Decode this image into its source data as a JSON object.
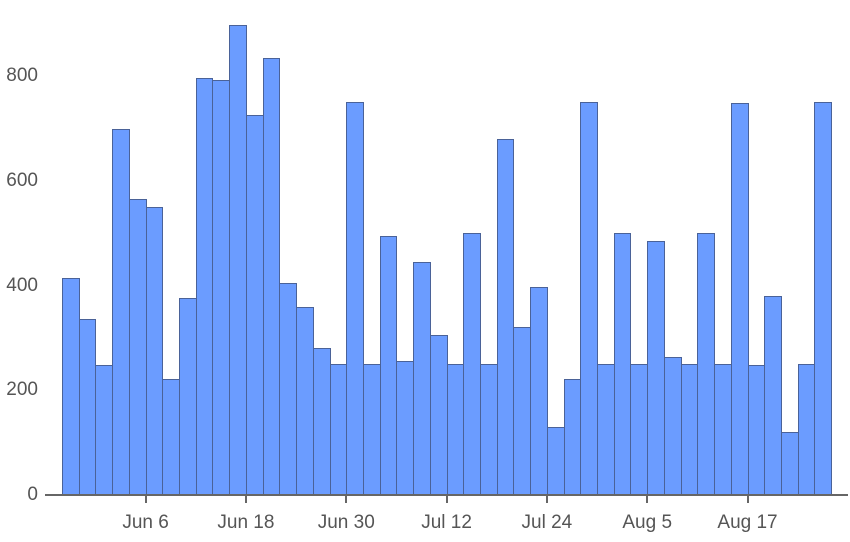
{
  "chart_data": {
    "type": "bar",
    "title": "",
    "xlabel": "",
    "ylabel": "",
    "ylim": [
      0,
      900
    ],
    "grid": false,
    "legend": null,
    "yticks": [
      0,
      200,
      400,
      600,
      800
    ],
    "xticks": [
      {
        "label": "Jun 6",
        "bar_index": 5
      },
      {
        "label": "Jun 18",
        "bar_index": 11
      },
      {
        "label": "Jun 30",
        "bar_index": 17
      },
      {
        "label": "Jul 12",
        "bar_index": 23
      },
      {
        "label": "Jul 24",
        "bar_index": 29
      },
      {
        "label": "Aug 5",
        "bar_index": 35
      },
      {
        "label": "Aug 17",
        "bar_index": 41
      }
    ],
    "bin_days": 2,
    "values": [
      414,
      336,
      248,
      699,
      565,
      550,
      221,
      376,
      796,
      792,
      897,
      725,
      834,
      405,
      359,
      281,
      250,
      750,
      250,
      494,
      256,
      445,
      305,
      250,
      500,
      250,
      680,
      321,
      397,
      130,
      221,
      750,
      250,
      500,
      250,
      485,
      263,
      250,
      500,
      250,
      748,
      248,
      380,
      120,
      250,
      750
    ],
    "colors": {
      "bar_fill": "#6b9cff",
      "bar_border": "#4a6298",
      "axis": "#666666",
      "text": "#555555"
    }
  }
}
